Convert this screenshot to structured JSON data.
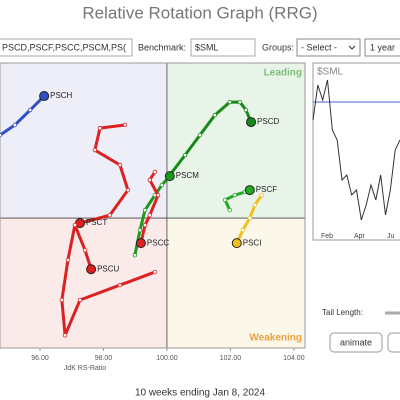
{
  "header": {
    "title": "Relative Rotation Graph (RRG)"
  },
  "toolbar": {
    "symbols": "PSCD,PSCF,PSCC,PSCM,PS(",
    "benchmark_label": "Benchmark:",
    "benchmark": "$SML",
    "groups_label": "Groups:",
    "groups": "- Select -",
    "period": "1 year"
  },
  "chart_data": {
    "type": "scatter",
    "x_label": "JdK RS-Ratio",
    "quadrant_labels": [
      "Leading",
      "Weakening"
    ],
    "xlim": [
      94.74,
      104.35
    ],
    "ylim": [
      95.91,
      104.88
    ],
    "xticks": [
      {
        "value": 96,
        "label": "96.00"
      },
      {
        "value": 98,
        "label": "98.00"
      },
      {
        "value": 100,
        "label": "100.00"
      },
      {
        "value": 102,
        "label": "102.00"
      },
      {
        "value": 104,
        "label": "104.00"
      }
    ],
    "series": [
      {
        "name": "PSCH",
        "color": "#3050c8",
        "x": [
          94.74,
          95.21,
          95.69,
          96.13
        ],
        "values": [
          102.61,
          102.93,
          103.4,
          103.84
        ]
      },
      {
        "name": "PSCD",
        "color": "#168a16",
        "x": [
          100.09,
          100.57,
          101.04,
          101.51,
          101.98,
          102.3,
          102.49,
          102.65
        ],
        "values": [
          101.35,
          101.98,
          102.61,
          103.24,
          103.65,
          103.65,
          103.4,
          103.02
        ]
      },
      {
        "name": "PSCM",
        "color": "#1a9a1a",
        "x": [
          98.99,
          99.15,
          99.31,
          99.62,
          99.84,
          100.09
        ],
        "values": [
          98.83,
          99.62,
          100.25,
          100.72,
          101.04,
          101.32
        ]
      },
      {
        "name": "PSCF",
        "color": "#22aa22",
        "x": [
          101.98,
          101.83,
          102.14,
          102.46,
          102.61
        ],
        "values": [
          100.25,
          100.57,
          100.72,
          100.82,
          100.88
        ]
      },
      {
        "name": "PSCC",
        "color": "#dd2020",
        "x": [
          99.62,
          99.46,
          99.72,
          99.46,
          99.31,
          99.18
        ],
        "values": [
          101.45,
          101.2,
          100.72,
          100.09,
          99.78,
          99.21
        ]
      },
      {
        "name": "PSCT",
        "color": "#dd2020",
        "x": [
          98.68,
          97.89,
          97.73,
          98.52,
          98.77,
          98.2,
          97.26
        ],
        "values": [
          102.93,
          102.83,
          102.14,
          101.67,
          100.88,
          100.09,
          99.84
        ]
      },
      {
        "name": "PSCU",
        "color": "#dd2020",
        "x": [
          99.62,
          98.52,
          97.26,
          96.79,
          96.69,
          96.88,
          97.1,
          97.42,
          97.61
        ],
        "values": [
          98.3,
          97.89,
          97.42,
          96.31,
          97.42,
          98.68,
          99.78,
          98.99,
          98.39
        ]
      },
      {
        "name": "PSCI",
        "color": "#f0c020",
        "x": [
          102.99,
          102.77,
          102.61,
          102.39,
          102.2
        ],
        "values": [
          100.72,
          100.41,
          100.0,
          99.62,
          99.21
        ]
      }
    ]
  },
  "mini_chart": {
    "title": "$SML",
    "months": [
      "Feb",
      "Apr",
      "Ju"
    ],
    "values": [
      120,
      155,
      140,
      160,
      110,
      100,
      60,
      65,
      45,
      50,
      20,
      35,
      55,
      40,
      65,
      25,
      50,
      90,
      100
    ],
    "ylim": [
      0,
      177
    ],
    "reference": 138,
    "color": "#333",
    "reference_color": "#4466cc"
  },
  "controls": {
    "tail_length_label": "Tail Length:",
    "animate": "animate"
  },
  "footer": {
    "text": "10 weeks ending Jan 8, 2024"
  }
}
